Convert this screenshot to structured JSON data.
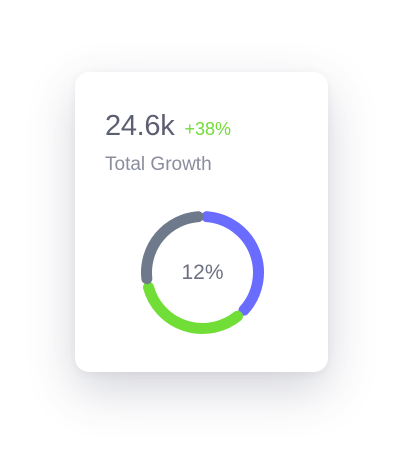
{
  "card": {
    "value": "24.6k",
    "change": "+38%",
    "label": "Total Growth"
  },
  "donut": {
    "center_label": "12%",
    "segments": [
      {
        "color": "#696cff",
        "fraction": 0.38
      },
      {
        "color": "#71dd37",
        "fraction": 0.34
      },
      {
        "color": "#6e7a8c",
        "fraction": 0.28
      }
    ]
  },
  "colors": {
    "accent": "#696cff",
    "success": "#71dd37",
    "secondary": "#6e7a8c"
  }
}
